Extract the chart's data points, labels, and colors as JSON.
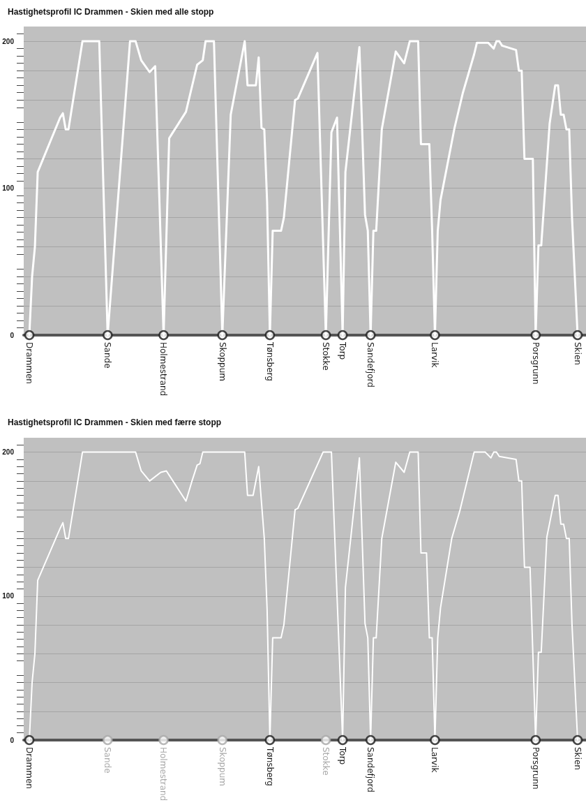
{
  "chart_data": [
    {
      "type": "line",
      "title": "Hastighetsprofil IC Drammen - Skien med alle stopp",
      "ylim": [
        0,
        210
      ],
      "categories": [
        null,
        null,
        "Drammen",
        null,
        null,
        null,
        null,
        null,
        null,
        null,
        null,
        null,
        null,
        null,
        null,
        null,
        null,
        null,
        null,
        null,
        null,
        null,
        null,
        null,
        null,
        null,
        null,
        null,
        null,
        null,
        "Sande",
        null,
        null,
        null,
        null,
        null,
        null,
        null,
        null,
        null,
        null,
        null,
        null,
        null,
        null,
        null,
        null,
        null,
        null,
        null,
        "Holmestrand",
        null,
        null,
        null,
        null,
        null,
        null,
        null,
        null,
        null,
        null,
        null,
        null,
        null,
        null,
        null,
        null,
        null,
        null,
        null,
        null,
        "Skoppum",
        null,
        null,
        null,
        null,
        null,
        null,
        null,
        null,
        null,
        null,
        null,
        null,
        null,
        null,
        null,
        null,
        "Tønsberg",
        null,
        null,
        null,
        null,
        null,
        null,
        null,
        null,
        null,
        null,
        null,
        null,
        null,
        null,
        null,
        null,
        null,
        null,
        null,
        "Stokke",
        null,
        null,
        null,
        null,
        null,
        "Torp",
        null,
        null,
        null,
        null,
        null,
        null,
        null,
        null,
        null,
        "Sandefjord",
        null,
        null,
        null,
        null,
        null,
        null,
        null,
        null,
        null,
        null,
        null,
        null,
        null,
        null,
        null,
        null,
        null,
        null,
        null,
        null,
        null,
        null,
        "Larvik",
        null,
        null,
        null,
        null,
        null,
        null,
        null,
        null,
        null,
        null,
        null,
        null,
        null,
        null,
        null,
        null,
        null,
        null,
        null,
        null,
        null,
        null,
        null,
        null,
        null,
        null,
        null,
        null,
        null,
        null,
        null,
        null,
        null,
        null,
        null,
        "Porsgrunn",
        null,
        null,
        null,
        null,
        null,
        null,
        null,
        null,
        null,
        null,
        null,
        null,
        null,
        null,
        "Skien",
        null,
        null,
        null
      ],
      "yticks": [
        0,
        {
          "value": 20,
          "label": null
        },
        {
          "value": 40,
          "label": null
        },
        {
          "value": 60,
          "label": null
        },
        {
          "value": 80,
          "label": null
        },
        100,
        {
          "value": 120,
          "label": null
        },
        {
          "value": 140,
          "label": null
        },
        {
          "value": 160,
          "label": null
        },
        {
          "value": 180,
          "label": null
        },
        200
      ],
      "grid": "y",
      "line_style": "solid",
      "series": [
        {
          "type": "line",
          "color": "#ffffff",
          "marker": "none",
          "values": [
            null,
            null,
            0,
            40,
            60,
            111,
            null,
            null,
            null,
            null,
            null,
            null,
            null,
            148,
            151,
            140,
            140,
            null,
            null,
            null,
            null,
            200,
            null,
            null,
            null,
            null,
            null,
            200,
            null,
            null,
            0,
            null,
            null,
            null,
            null,
            null,
            null,
            null,
            200,
            null,
            200,
            null,
            187,
            null,
            null,
            179,
            null,
            183,
            null,
            null,
            0,
            null,
            134,
            137,
            null,
            null,
            null,
            null,
            152,
            null,
            null,
            null,
            184,
            null,
            187,
            200,
            null,
            null,
            200,
            null,
            null,
            0,
            null,
            null,
            150,
            160,
            null,
            null,
            null,
            200,
            170,
            null,
            null,
            170,
            189,
            141,
            140,
            91,
            0,
            71,
            null,
            null,
            71,
            80,
            null,
            null,
            null,
            160,
            161,
            null,
            null,
            null,
            null,
            null,
            null,
            192,
            null,
            null,
            0,
            null,
            138,
            null,
            148,
            null,
            0,
            111,
            null,
            null,
            null,
            null,
            196,
            null,
            82,
            71,
            0,
            71,
            71,
            null,
            140,
            null,
            null,
            null,
            null,
            193,
            null,
            null,
            185,
            null,
            200,
            null,
            null,
            200,
            130,
            null,
            null,
            130,
            71,
            0,
            71,
            92,
            null,
            null,
            null,
            null,
            141,
            null,
            null,
            165,
            null,
            null,
            null,
            191,
            199,
            null,
            null,
            null,
            199,
            null,
            195,
            200,
            200,
            197,
            null,
            null,
            null,
            null,
            194,
            180,
            180,
            120,
            null,
            null,
            120,
            0,
            61,
            61,
            null,
            null,
            144,
            null,
            170,
            170,
            150,
            150,
            140,
            140,
            80,
            40,
            0,
            null,
            null,
            null
          ]
        },
        {
          "type": "scatter",
          "values": [
            null,
            null,
            0,
            null,
            null,
            null,
            null,
            null,
            null,
            null,
            null,
            null,
            null,
            null,
            null,
            null,
            null,
            null,
            null,
            null,
            null,
            null,
            null,
            null,
            null,
            null,
            null,
            null,
            null,
            null,
            0,
            null,
            null,
            null,
            null,
            null,
            null,
            null,
            null,
            null,
            null,
            null,
            null,
            null,
            null,
            null,
            null,
            null,
            null,
            null,
            0,
            null,
            null,
            null,
            null,
            null,
            null,
            null,
            null,
            null,
            null,
            null,
            null,
            null,
            null,
            null,
            null,
            null,
            null,
            null,
            null,
            0,
            null,
            null,
            null,
            null,
            null,
            null,
            null,
            null,
            null,
            null,
            null,
            null,
            null,
            null,
            null,
            null,
            0,
            null,
            null,
            null,
            null,
            null,
            null,
            null,
            null,
            null,
            null,
            null,
            null,
            null,
            null,
            null,
            null,
            null,
            null,
            null,
            0,
            null,
            null,
            null,
            null,
            null,
            0,
            null,
            null,
            null,
            null,
            null,
            null,
            null,
            null,
            null,
            0,
            null,
            null,
            null,
            null,
            null,
            null,
            null,
            null,
            null,
            null,
            null,
            null,
            null,
            null,
            null,
            null,
            null,
            null,
            null,
            null,
            null,
            null,
            0,
            null,
            null,
            null,
            null,
            null,
            null,
            null,
            null,
            null,
            null,
            null,
            null,
            null,
            null,
            null,
            null,
            null,
            null,
            null,
            null,
            null,
            null,
            null,
            null,
            null,
            null,
            null,
            null,
            null,
            null,
            null,
            null,
            null,
            null,
            null,
            0,
            null,
            null,
            null,
            null,
            null,
            null,
            null,
            null,
            null,
            null,
            null,
            null,
            null,
            null,
            0,
            null,
            null,
            null
          ],
          "colors": [
            null,
            null,
            "#1a1a1a",
            null,
            null,
            null,
            null,
            null,
            null,
            null,
            null,
            null,
            null,
            null,
            null,
            null,
            null,
            null,
            null,
            null,
            null,
            null,
            null,
            null,
            null,
            null,
            null,
            null,
            null,
            null,
            "#1a1a1a",
            null,
            null,
            null,
            null,
            null,
            null,
            null,
            null,
            null,
            null,
            null,
            null,
            null,
            null,
            null,
            null,
            null,
            null,
            null,
            "#1a1a1a",
            null,
            null,
            null,
            null,
            null,
            null,
            null,
            null,
            null,
            null,
            null,
            null,
            null,
            null,
            null,
            null,
            null,
            null,
            null,
            null,
            "#1a1a1a",
            null,
            null,
            null,
            null,
            null,
            null,
            null,
            null,
            null,
            null,
            null,
            null,
            null,
            null,
            null,
            null,
            "#1a1a1a",
            null,
            null,
            null,
            null,
            null,
            null,
            null,
            null,
            null,
            null,
            null,
            null,
            null,
            null,
            null,
            null,
            null,
            null,
            null,
            "#1a1a1a",
            null,
            null,
            null,
            null,
            null,
            "#1a1a1a",
            null,
            null,
            null,
            null,
            null,
            null,
            null,
            null,
            null,
            "#1a1a1a",
            null,
            null,
            null,
            null,
            null,
            null,
            null,
            null,
            null,
            null,
            null,
            null,
            null,
            null,
            null,
            null,
            null,
            null,
            null,
            null,
            null,
            null,
            "#1a1a1a",
            null,
            null,
            null,
            null,
            null,
            null,
            null,
            null,
            null,
            null,
            null,
            null,
            null,
            null,
            null,
            null,
            null,
            null,
            null,
            null,
            null,
            null,
            null,
            null,
            null,
            null,
            null,
            null,
            null,
            null,
            null,
            null,
            null,
            null,
            null,
            "#1a1a1a",
            null,
            null,
            null,
            null,
            null,
            null,
            null,
            null,
            null,
            null,
            null,
            null,
            null,
            null,
            "#1a1a1a",
            null,
            null,
            null
          ]
        }
      ]
    },
    {
      "type": "line",
      "title": "Hastighetsprofil IC Drammen - Skien med færre stopp",
      "ylim": [
        0,
        210
      ],
      "categories": [
        null,
        null,
        "Drammen",
        null,
        null,
        null,
        null,
        null,
        null,
        null,
        null,
        null,
        null,
        null,
        null,
        null,
        null,
        null,
        null,
        null,
        null,
        null,
        null,
        null,
        null,
        null,
        null,
        null,
        null,
        null,
        "Sande",
        null,
        null,
        null,
        null,
        null,
        null,
        null,
        null,
        null,
        null,
        null,
        null,
        null,
        null,
        null,
        null,
        null,
        null,
        null,
        "Holmestrand",
        null,
        null,
        null,
        null,
        null,
        null,
        null,
        null,
        null,
        null,
        null,
        null,
        null,
        null,
        null,
        null,
        null,
        null,
        null,
        null,
        "Skoppum",
        null,
        null,
        null,
        null,
        null,
        null,
        null,
        null,
        null,
        null,
        null,
        null,
        null,
        null,
        null,
        null,
        "Tønsberg",
        null,
        null,
        null,
        null,
        null,
        null,
        null,
        null,
        null,
        null,
        null,
        null,
        null,
        null,
        null,
        null,
        null,
        null,
        null,
        "Stokke",
        null,
        null,
        null,
        null,
        null,
        "Torp",
        null,
        null,
        null,
        null,
        null,
        null,
        null,
        null,
        null,
        "Sandefjord",
        null,
        null,
        null,
        null,
        null,
        null,
        null,
        null,
        null,
        null,
        null,
        null,
        null,
        null,
        null,
        null,
        null,
        null,
        null,
        null,
        null,
        null,
        "Larvik",
        null,
        null,
        null,
        null,
        null,
        null,
        null,
        null,
        null,
        null,
        null,
        null,
        null,
        null,
        null,
        null,
        null,
        null,
        null,
        null,
        null,
        null,
        null,
        null,
        null,
        null,
        null,
        null,
        null,
        null,
        null,
        null,
        null,
        null,
        null,
        "Porsgrunn",
        null,
        null,
        null,
        null,
        null,
        null,
        null,
        null,
        null,
        null,
        null,
        null,
        null,
        null,
        "Skien",
        null,
        null,
        null
      ],
      "yticks": [
        0,
        {
          "value": 20,
          "label": null
        },
        {
          "value": 40,
          "label": null
        },
        {
          "value": 60,
          "label": null
        },
        {
          "value": 80,
          "label": null
        },
        100,
        {
          "value": 120,
          "label": null
        },
        {
          "value": 140,
          "label": null
        },
        {
          "value": 160,
          "label": null
        },
        {
          "value": 180,
          "label": null
        },
        200
      ],
      "grid": "y",
      "line_style": "solid",
      "series": [
        {
          "type": "line",
          "color": "#ffffff",
          "marker": "none",
          "values": [
            null,
            null,
            0,
            40,
            60,
            111,
            null,
            null,
            null,
            null,
            null,
            null,
            null,
            147,
            151,
            140,
            140,
            null,
            null,
            null,
            null,
            200,
            null,
            null,
            null,
            null,
            null,
            null,
            null,
            null,
            null,
            null,
            null,
            null,
            null,
            null,
            null,
            null,
            null,
            null,
            200,
            null,
            187,
            null,
            null,
            180,
            null,
            null,
            null,
            186,
            null,
            187,
            null,
            null,
            null,
            null,
            null,
            null,
            166,
            null,
            179,
            null,
            191,
            192,
            200,
            null,
            null,
            null,
            null,
            null,
            null,
            null,
            null,
            null,
            null,
            null,
            null,
            null,
            null,
            200,
            170,
            null,
            170,
            null,
            190,
            null,
            140,
            91,
            0,
            71,
            null,
            null,
            71,
            80,
            null,
            null,
            null,
            160,
            161,
            null,
            null,
            null,
            null,
            null,
            null,
            null,
            null,
            200,
            null,
            null,
            200,
            null,
            null,
            null,
            0,
            106,
            null,
            null,
            null,
            null,
            196,
            null,
            81,
            71,
            0,
            71,
            71,
            null,
            140,
            null,
            null,
            null,
            null,
            193,
            null,
            null,
            186,
            null,
            200,
            null,
            null,
            200,
            130,
            null,
            130,
            71,
            71,
            0,
            71,
            92,
            null,
            null,
            null,
            140,
            null,
            null,
            160,
            null,
            null,
            null,
            null,
            200,
            null,
            null,
            null,
            200,
            null,
            196,
            200,
            200,
            197,
            null,
            null,
            null,
            null,
            null,
            195,
            180,
            180,
            120,
            null,
            120,
            null,
            0,
            61,
            61,
            null,
            141,
            null,
            null,
            170,
            170,
            150,
            150,
            140,
            140,
            80,
            40,
            0,
            null,
            null,
            null
          ]
        },
        {
          "type": "scatter",
          "values": [
            null,
            null,
            0,
            null,
            null,
            null,
            null,
            null,
            null,
            null,
            null,
            null,
            null,
            null,
            null,
            null,
            null,
            null,
            null,
            null,
            null,
            null,
            null,
            null,
            null,
            null,
            null,
            null,
            null,
            null,
            0,
            null,
            null,
            null,
            null,
            null,
            null,
            null,
            null,
            null,
            null,
            null,
            null,
            null,
            null,
            null,
            null,
            null,
            null,
            null,
            0,
            null,
            null,
            null,
            null,
            null,
            null,
            null,
            null,
            null,
            null,
            null,
            null,
            null,
            null,
            null,
            null,
            null,
            null,
            null,
            null,
            0,
            null,
            null,
            null,
            null,
            null,
            null,
            null,
            null,
            null,
            null,
            null,
            null,
            null,
            null,
            null,
            null,
            0,
            null,
            null,
            null,
            null,
            null,
            null,
            null,
            null,
            null,
            null,
            null,
            null,
            null,
            null,
            null,
            null,
            null,
            null,
            null,
            0,
            null,
            null,
            null,
            null,
            null,
            0,
            null,
            null,
            null,
            null,
            null,
            null,
            null,
            null,
            null,
            0,
            null,
            null,
            null,
            null,
            null,
            null,
            null,
            null,
            null,
            null,
            null,
            null,
            null,
            null,
            null,
            null,
            null,
            null,
            null,
            null,
            null,
            null,
            0,
            null,
            null,
            null,
            null,
            null,
            null,
            null,
            null,
            null,
            null,
            null,
            null,
            null,
            null,
            null,
            null,
            null,
            null,
            null,
            null,
            null,
            null,
            null,
            null,
            null,
            null,
            null,
            null,
            null,
            null,
            null,
            null,
            null,
            null,
            null,
            0,
            null,
            null,
            null,
            null,
            null,
            null,
            null,
            null,
            null,
            null,
            null,
            null,
            null,
            null,
            0,
            null,
            null,
            null
          ],
          "colors": [
            null,
            null,
            "#1a1a1a",
            null,
            null,
            null,
            null,
            null,
            null,
            null,
            null,
            null,
            null,
            null,
            null,
            null,
            null,
            null,
            null,
            null,
            null,
            null,
            null,
            null,
            null,
            null,
            null,
            null,
            null,
            null,
            "#a8a8a8",
            null,
            null,
            null,
            null,
            null,
            null,
            null,
            null,
            null,
            null,
            null,
            null,
            null,
            null,
            null,
            null,
            null,
            null,
            null,
            "#a8a8a8",
            null,
            null,
            null,
            null,
            null,
            null,
            null,
            null,
            null,
            null,
            null,
            null,
            null,
            null,
            null,
            null,
            null,
            null,
            null,
            null,
            "#a8a8a8",
            null,
            null,
            null,
            null,
            null,
            null,
            null,
            null,
            null,
            null,
            null,
            null,
            null,
            null,
            null,
            null,
            "#1a1a1a",
            null,
            null,
            null,
            null,
            null,
            null,
            null,
            null,
            null,
            null,
            null,
            null,
            null,
            null,
            null,
            null,
            null,
            null,
            null,
            "#a8a8a8",
            null,
            null,
            null,
            null,
            null,
            "#1a1a1a",
            null,
            null,
            null,
            null,
            null,
            null,
            null,
            null,
            null,
            "#1a1a1a",
            null,
            null,
            null,
            null,
            null,
            null,
            null,
            null,
            null,
            null,
            null,
            null,
            null,
            null,
            null,
            null,
            null,
            null,
            null,
            null,
            null,
            null,
            "#1a1a1a",
            null,
            null,
            null,
            null,
            null,
            null,
            null,
            null,
            null,
            null,
            null,
            null,
            null,
            null,
            null,
            null,
            null,
            null,
            null,
            null,
            null,
            null,
            null,
            null,
            null,
            null,
            null,
            null,
            null,
            null,
            null,
            null,
            null,
            null,
            null,
            "#1a1a1a",
            null,
            null,
            null,
            null,
            null,
            null,
            null,
            null,
            null,
            null,
            null,
            null,
            null,
            null,
            "#1a1a1a",
            null,
            null,
            null
          ]
        }
      ]
    }
  ]
}
